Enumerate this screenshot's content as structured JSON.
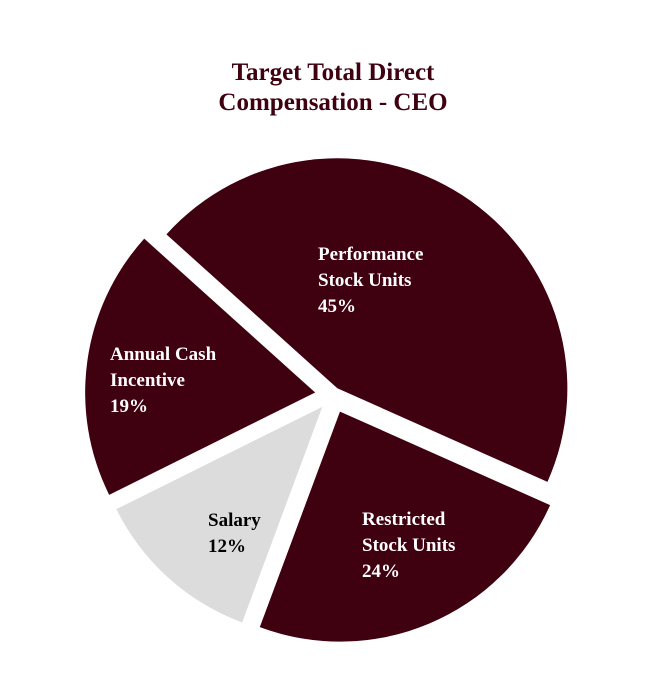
{
  "chart_data": {
    "type": "pie",
    "title": [
      "Target Total Direct",
      "Compensation - CEO"
    ],
    "slices": [
      {
        "name": "Performance Stock Units",
        "label_lines": [
          "Performance",
          "Stock Units"
        ],
        "value": 45,
        "value_label": "45%",
        "color": "#3f0010",
        "label_color": "#ffffff"
      },
      {
        "name": "Restricted Stock Units",
        "label_lines": [
          "Restricted",
          "Stock Units"
        ],
        "value": 24,
        "value_label": "24%",
        "color": "#3f0010",
        "label_color": "#ffffff"
      },
      {
        "name": "Salary",
        "label_lines": [
          "Salary"
        ],
        "value": 12,
        "value_label": "12%",
        "color": "#dcdcdc",
        "label_color": "#000000"
      },
      {
        "name": "Annual Cash Incentive",
        "label_lines": [
          "Annual Cash",
          "Incentive"
        ],
        "value": 19,
        "value_label": "19%",
        "color": "#3f0010",
        "label_color": "#ffffff"
      }
    ],
    "exploded": true,
    "legend": "none"
  }
}
